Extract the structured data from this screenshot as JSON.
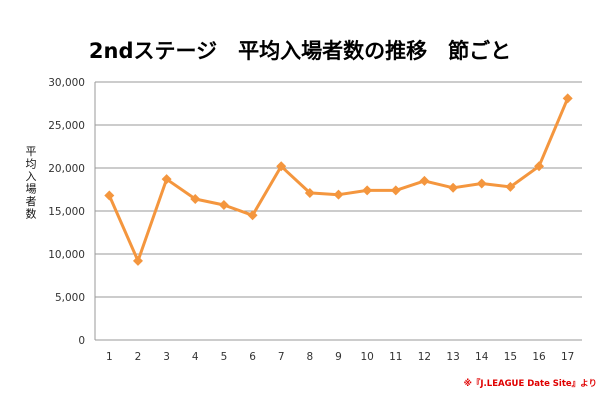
{
  "chart_data": {
    "type": "line",
    "title": "2ndステージ　平均入場者数の推移　節ごと",
    "ylabel": "平均入場者数",
    "xlabel": "",
    "categories": [
      "1",
      "2",
      "3",
      "4",
      "5",
      "6",
      "7",
      "8",
      "9",
      "10",
      "11",
      "12",
      "13",
      "14",
      "15",
      "16",
      "17"
    ],
    "series": [
      {
        "values": [
          16800,
          9200,
          18700,
          16400,
          15700,
          14500,
          20200,
          17100,
          16900,
          17400,
          17400,
          18500,
          17700,
          18200,
          17800,
          20200,
          28100
        ]
      }
    ],
    "ylim": [
      0,
      30000
    ],
    "yticks": [
      "0",
      "5,000",
      "10,000",
      "15,000",
      "20,000",
      "25,000",
      "30,000"
    ],
    "grid": true,
    "legend": "none",
    "marker": "diamond",
    "color": "#f4963e",
    "source": "※『J.LEAGUE Date Site』より"
  }
}
